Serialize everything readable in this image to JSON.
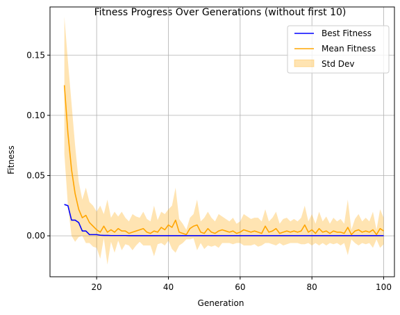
{
  "chart_data": {
    "type": "line",
    "title": "Fitness Progress Over Generations (without first 10)",
    "xlabel": "Generation",
    "ylabel": "Fitness",
    "xlim": [
      7,
      103
    ],
    "ylim": [
      -0.034,
      0.19
    ],
    "xticks": [
      20,
      40,
      60,
      80,
      100
    ],
    "xtick_labels": [
      "20",
      "40",
      "60",
      "80",
      "100"
    ],
    "yticks": [
      0.0,
      0.05,
      0.1,
      0.15
    ],
    "ytick_labels": [
      "0.00",
      "0.05",
      "0.10",
      "0.15"
    ],
    "grid": true,
    "legend_position": "top-right",
    "x": [
      11,
      12,
      13,
      14,
      15,
      16,
      17,
      18,
      19,
      20,
      21,
      22,
      23,
      24,
      25,
      26,
      27,
      28,
      29,
      30,
      31,
      32,
      33,
      34,
      35,
      36,
      37,
      38,
      39,
      40,
      41,
      42,
      43,
      44,
      45,
      46,
      47,
      48,
      49,
      50,
      51,
      52,
      53,
      54,
      55,
      56,
      57,
      58,
      59,
      60,
      61,
      62,
      63,
      64,
      65,
      66,
      67,
      68,
      69,
      70,
      71,
      72,
      73,
      74,
      75,
      76,
      77,
      78,
      79,
      80,
      81,
      82,
      83,
      84,
      85,
      86,
      87,
      88,
      89,
      90,
      91,
      92,
      93,
      94,
      95,
      96,
      97,
      98,
      99,
      100
    ],
    "series": [
      {
        "name": "Best Fitness",
        "color": "#0000ff",
        "values": [
          0.026,
          0.025,
          0.013,
          0.013,
          0.011,
          0.004,
          0.004,
          0.001,
          0.001,
          0.001,
          0.0005,
          0.0003,
          0.0003,
          0.0002,
          0.0002,
          0.0002,
          0.0002,
          0.0002,
          0.0001,
          0.0001,
          0.0001,
          0.0001,
          0.0001,
          0.0001,
          0.0001,
          0.0001,
          0.0001,
          0.0001,
          0.0001,
          0.0001,
          0.0001,
          0.0001,
          0.0001,
          0.0001,
          0.0001,
          0.0001,
          0.0001,
          0.0001,
          0.0001,
          0.0001,
          0.0001,
          0.0001,
          0.0001,
          0.0001,
          0.0001,
          0.0001,
          0.0001,
          0.0001,
          0.0001,
          0.0001,
          0.0001,
          0.0001,
          0.0001,
          0.0001,
          0.0001,
          0.0001,
          0.0001,
          0.0001,
          0.0001,
          0.0001,
          0.0001,
          0.0001,
          0.0001,
          0.0001,
          0.0001,
          0.0001,
          0.0001,
          0.0001,
          0.0001,
          0.0001,
          0.0001,
          0.0001,
          0.0001,
          0.0001,
          0.0001,
          0.0001,
          0.0001,
          0.0001,
          0.0001,
          0.0001,
          0.0001,
          0.0001,
          0.0001,
          0.0001,
          0.0001,
          0.0001,
          0.0001,
          0.0001,
          0.0001,
          0.0001
        ]
      },
      {
        "name": "Mean Fitness",
        "color": "#ffa500",
        "values": [
          0.125,
          0.085,
          0.055,
          0.035,
          0.022,
          0.015,
          0.017,
          0.011,
          0.008,
          0.005,
          0.003,
          0.008,
          0.003,
          0.005,
          0.003,
          0.006,
          0.004,
          0.004,
          0.002,
          0.003,
          0.004,
          0.005,
          0.006,
          0.003,
          0.002,
          0.004,
          0.003,
          0.007,
          0.005,
          0.009,
          0.007,
          0.013,
          0.003,
          0.002,
          0.001,
          0.006,
          0.008,
          0.009,
          0.003,
          0.002,
          0.006,
          0.003,
          0.002,
          0.004,
          0.005,
          0.004,
          0.003,
          0.004,
          0.002,
          0.003,
          0.005,
          0.004,
          0.003,
          0.004,
          0.003,
          0.002,
          0.008,
          0.003,
          0.004,
          0.006,
          0.002,
          0.003,
          0.004,
          0.003,
          0.004,
          0.003,
          0.004,
          0.009,
          0.003,
          0.005,
          0.002,
          0.006,
          0.003,
          0.004,
          0.002,
          0.004,
          0.003,
          0.003,
          0.002,
          0.007,
          0.001,
          0.004,
          0.005,
          0.003,
          0.004,
          0.003,
          0.005,
          0.001,
          0.006,
          0.004
        ]
      }
    ],
    "band": {
      "name": "Std Dev",
      "color": "#ffa500",
      "upper": [
        0.182,
        0.145,
        0.11,
        0.075,
        0.045,
        0.03,
        0.04,
        0.028,
        0.025,
        0.02,
        0.025,
        0.018,
        0.03,
        0.015,
        0.02,
        0.016,
        0.02,
        0.015,
        0.012,
        0.018,
        0.016,
        0.015,
        0.02,
        0.014,
        0.012,
        0.025,
        0.013,
        0.02,
        0.018,
        0.022,
        0.025,
        0.04,
        0.014,
        0.01,
        0.005,
        0.015,
        0.018,
        0.03,
        0.012,
        0.015,
        0.02,
        0.015,
        0.012,
        0.018,
        0.016,
        0.014,
        0.012,
        0.015,
        0.01,
        0.012,
        0.018,
        0.016,
        0.014,
        0.015,
        0.015,
        0.012,
        0.022,
        0.012,
        0.015,
        0.02,
        0.01,
        0.014,
        0.015,
        0.012,
        0.014,
        0.012,
        0.015,
        0.025,
        0.012,
        0.018,
        0.01,
        0.02,
        0.012,
        0.016,
        0.01,
        0.015,
        0.012,
        0.014,
        0.01,
        0.03,
        0.005,
        0.014,
        0.018,
        0.012,
        0.015,
        0.012,
        0.02,
        0.005,
        0.022,
        0.015
      ],
      "lower": [
        0.068,
        0.025,
        0.0,
        -0.005,
        -0.001,
        0.0,
        -0.006,
        -0.006,
        -0.009,
        -0.01,
        -0.019,
        -0.002,
        -0.024,
        -0.005,
        -0.014,
        -0.004,
        -0.012,
        -0.007,
        -0.008,
        -0.012,
        -0.008,
        -0.005,
        -0.008,
        -0.008,
        -0.008,
        -0.017,
        -0.007,
        -0.006,
        -0.008,
        -0.004,
        -0.011,
        -0.014,
        -0.008,
        -0.006,
        -0.003,
        -0.003,
        -0.002,
        -0.012,
        -0.006,
        -0.011,
        -0.008,
        -0.009,
        -0.008,
        -0.01,
        -0.006,
        -0.006,
        -0.006,
        -0.007,
        -0.006,
        -0.006,
        -0.008,
        -0.008,
        -0.008,
        -0.007,
        -0.009,
        -0.008,
        -0.006,
        -0.006,
        -0.007,
        -0.008,
        -0.006,
        -0.008,
        -0.007,
        -0.006,
        -0.006,
        -0.006,
        -0.007,
        -0.007,
        -0.006,
        -0.008,
        -0.006,
        -0.008,
        -0.006,
        -0.008,
        -0.006,
        -0.007,
        -0.006,
        -0.008,
        -0.006,
        -0.016,
        -0.003,
        -0.006,
        -0.008,
        -0.006,
        -0.007,
        -0.006,
        -0.01,
        -0.003,
        -0.01,
        -0.007
      ]
    }
  }
}
